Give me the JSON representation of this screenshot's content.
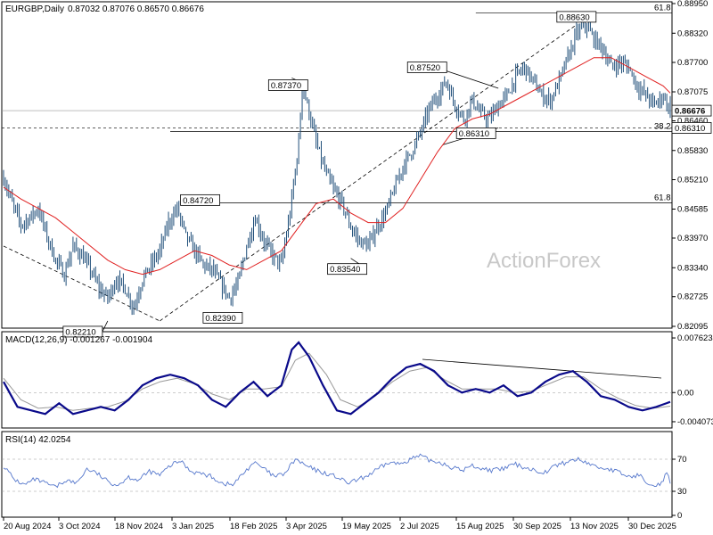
{
  "colors": {
    "price": "#1f4e79",
    "ma": "#e02020",
    "macd": "#0a0a8a",
    "signal": "#999999",
    "rsi": "#5577cc",
    "grid": "#cccccc",
    "watermark": "#c8c8c8"
  },
  "header": {
    "instrument": "EURGBP,Daily",
    "ohlc": "0.87032 0.87076 0.86570 0.86676",
    "watermark": "ActionForex"
  },
  "chart_data": [
    {
      "type": "candlestick",
      "name_label": "EURGBP,Daily",
      "ylim": [
        0.82095,
        0.8895
      ],
      "y_ticks": [
        "0.88950",
        "0.88320",
        "0.87700",
        "0.87075",
        "0.86460",
        "0.85830",
        "0.85210",
        "0.84585",
        "0.83970",
        "0.83340",
        "0.82725",
        "0.82095"
      ],
      "y_tick_values": [
        0.8895,
        0.8832,
        0.877,
        0.87075,
        0.8646,
        0.8583,
        0.8521,
        0.84585,
        0.8397,
        0.8334,
        0.82725,
        0.82095
      ],
      "current_price": "0.86676",
      "current_price_value": 0.86676,
      "level_tag": "0.86310",
      "level_tag_value": 0.8631,
      "x_labels": [
        "20 Aug 2024",
        "3 Oct 2024",
        "18 Nov 2024",
        "3 Jan 2025",
        "18 Feb 2025",
        "3 Apr 2025",
        "19 May 2025",
        "2 Jul 2025",
        "15 Aug 2025",
        "30 Sep 2025",
        "13 Nov 2025",
        "30 Dec 2025"
      ],
      "fib_levels": [
        {
          "label": "61.8",
          "value": 0.8875
        },
        {
          "label": "38.2",
          "value": 0.8623
        },
        {
          "label": "61.8",
          "value": 0.8472
        }
      ],
      "annotations": [
        {
          "text": "0.82210",
          "value": 0.8221
        },
        {
          "text": "0.82390",
          "value": 0.8239
        },
        {
          "text": "0.84720",
          "value": 0.8472
        },
        {
          "text": "0.87370",
          "value": 0.8737
        },
        {
          "text": "0.83540",
          "value": 0.8354
        },
        {
          "text": "0.87520",
          "value": 0.8752
        },
        {
          "text": "0.86310",
          "value": 0.8631
        },
        {
          "text": "0.88630",
          "value": 0.8863
        }
      ],
      "close_points": [
        [
          0,
          0.8525
        ],
        [
          5,
          0.847
        ],
        [
          10,
          0.8425
        ],
        [
          15,
          0.844
        ],
        [
          20,
          0.846
        ],
        [
          25,
          0.84
        ],
        [
          30,
          0.835
        ],
        [
          35,
          0.832
        ],
        [
          40,
          0.838
        ],
        [
          45,
          0.836
        ],
        [
          50,
          0.833
        ],
        [
          55,
          0.829
        ],
        [
          60,
          0.827
        ],
        [
          65,
          0.831
        ],
        [
          70,
          0.829
        ],
        [
          75,
          0.825
        ],
        [
          80,
          0.831
        ],
        [
          85,
          0.834
        ],
        [
          90,
          0.837
        ],
        [
          95,
          0.843
        ],
        [
          100,
          0.846
        ],
        [
          105,
          0.84
        ],
        [
          110,
          0.837
        ],
        [
          115,
          0.834
        ],
        [
          120,
          0.833
        ],
        [
          125,
          0.83
        ],
        [
          130,
          0.827
        ],
        [
          135,
          0.83
        ],
        [
          140,
          0.838
        ],
        [
          145,
          0.844
        ],
        [
          150,
          0.839
        ],
        [
          155,
          0.836
        ],
        [
          160,
          0.834
        ],
        [
          165,
          0.845
        ],
        [
          170,
          0.86
        ],
        [
          172,
          0.872
        ],
        [
          175,
          0.868
        ],
        [
          180,
          0.86
        ],
        [
          185,
          0.854
        ],
        [
          190,
          0.85
        ],
        [
          195,
          0.847
        ],
        [
          200,
          0.842
        ],
        [
          205,
          0.839
        ],
        [
          210,
          0.838
        ],
        [
          215,
          0.842
        ],
        [
          220,
          0.845
        ],
        [
          225,
          0.85
        ],
        [
          230,
          0.855
        ],
        [
          235,
          0.858
        ],
        [
          240,
          0.862
        ],
        [
          245,
          0.867
        ],
        [
          250,
          0.87
        ],
        [
          255,
          0.873
        ],
        [
          260,
          0.868
        ],
        [
          265,
          0.865
        ],
        [
          270,
          0.869
        ],
        [
          275,
          0.866
        ],
        [
          280,
          0.865
        ],
        [
          285,
          0.868
        ],
        [
          290,
          0.87
        ],
        [
          295,
          0.874
        ],
        [
          300,
          0.876
        ],
        [
          305,
          0.873
        ],
        [
          310,
          0.87
        ],
        [
          315,
          0.869
        ],
        [
          320,
          0.873
        ],
        [
          325,
          0.878
        ],
        [
          330,
          0.883
        ],
        [
          335,
          0.885
        ],
        [
          340,
          0.882
        ],
        [
          345,
          0.88
        ],
        [
          350,
          0.876
        ],
        [
          355,
          0.877
        ],
        [
          360,
          0.876
        ],
        [
          365,
          0.872
        ],
        [
          370,
          0.87
        ],
        [
          375,
          0.868
        ],
        [
          380,
          0.87
        ],
        [
          384,
          0.8668
        ]
      ],
      "ma_points": [
        [
          0,
          0.8505
        ],
        [
          10,
          0.848
        ],
        [
          20,
          0.846
        ],
        [
          30,
          0.844
        ],
        [
          40,
          0.841
        ],
        [
          50,
          0.838
        ],
        [
          60,
          0.835
        ],
        [
          70,
          0.833
        ],
        [
          80,
          0.832
        ],
        [
          90,
          0.833
        ],
        [
          100,
          0.835
        ],
        [
          110,
          0.837
        ],
        [
          120,
          0.836
        ],
        [
          130,
          0.834
        ],
        [
          140,
          0.833
        ],
        [
          150,
          0.835
        ],
        [
          160,
          0.837
        ],
        [
          170,
          0.842
        ],
        [
          180,
          0.847
        ],
        [
          190,
          0.848
        ],
        [
          200,
          0.845
        ],
        [
          210,
          0.843
        ],
        [
          220,
          0.843
        ],
        [
          230,
          0.846
        ],
        [
          240,
          0.852
        ],
        [
          250,
          0.858
        ],
        [
          260,
          0.863
        ],
        [
          270,
          0.865
        ],
        [
          280,
          0.866
        ],
        [
          290,
          0.868
        ],
        [
          300,
          0.87
        ],
        [
          310,
          0.872
        ],
        [
          320,
          0.874
        ],
        [
          330,
          0.876
        ],
        [
          340,
          0.878
        ],
        [
          350,
          0.878
        ],
        [
          360,
          0.876
        ],
        [
          370,
          0.874
        ],
        [
          380,
          0.872
        ],
        [
          384,
          0.8705
        ]
      ]
    },
    {
      "type": "line",
      "name_label": "MACD(12,26,9) -0.001267 -0.001904",
      "ylim": [
        -0.0047,
        0.008
      ],
      "y_ticks": [
        "0.007623",
        "0.00",
        "-0.004073"
      ],
      "y_tick_values": [
        0.007623,
        0.0,
        -0.004073
      ],
      "macd_points": [
        [
          0,
          0.0015
        ],
        [
          8,
          -0.002
        ],
        [
          16,
          -0.0025
        ],
        [
          24,
          -0.003
        ],
        [
          32,
          -0.0015
        ],
        [
          40,
          -0.003
        ],
        [
          48,
          -0.0025
        ],
        [
          56,
          -0.002
        ],
        [
          64,
          -0.0025
        ],
        [
          72,
          -0.001
        ],
        [
          80,
          0.001
        ],
        [
          88,
          0.002
        ],
        [
          96,
          0.0025
        ],
        [
          104,
          0.002
        ],
        [
          112,
          0.001
        ],
        [
          120,
          -0.001
        ],
        [
          128,
          -0.002
        ],
        [
          136,
          0.0
        ],
        [
          144,
          0.0015
        ],
        [
          152,
          -0.0005
        ],
        [
          160,
          0.001
        ],
        [
          166,
          0.006
        ],
        [
          170,
          0.007
        ],
        [
          176,
          0.005
        ],
        [
          184,
          0.001
        ],
        [
          192,
          -0.0025
        ],
        [
          200,
          -0.003
        ],
        [
          208,
          -0.0015
        ],
        [
          216,
          0.0
        ],
        [
          224,
          0.002
        ],
        [
          232,
          0.0035
        ],
        [
          240,
          0.004
        ],
        [
          248,
          0.003
        ],
        [
          256,
          0.001
        ],
        [
          264,
          0.0
        ],
        [
          272,
          0.0005
        ],
        [
          280,
          0.0
        ],
        [
          288,
          0.001
        ],
        [
          296,
          -0.0005
        ],
        [
          304,
          0.0
        ],
        [
          312,
          0.0015
        ],
        [
          320,
          0.0025
        ],
        [
          328,
          0.003
        ],
        [
          336,
          0.0015
        ],
        [
          344,
          -0.0005
        ],
        [
          352,
          -0.001
        ],
        [
          360,
          -0.002
        ],
        [
          368,
          -0.0025
        ],
        [
          376,
          -0.002
        ],
        [
          384,
          -0.0013
        ]
      ],
      "signal_points": [
        [
          0,
          0.002
        ],
        [
          10,
          -0.001
        ],
        [
          20,
          -0.0022
        ],
        [
          30,
          -0.002
        ],
        [
          40,
          -0.0025
        ],
        [
          50,
          -0.0022
        ],
        [
          60,
          -0.002
        ],
        [
          70,
          -0.0012
        ],
        [
          80,
          0.0005
        ],
        [
          90,
          0.0015
        ],
        [
          100,
          0.002
        ],
        [
          110,
          0.0012
        ],
        [
          120,
          -0.0002
        ],
        [
          130,
          -0.001
        ],
        [
          140,
          0.0005
        ],
        [
          150,
          0.0005
        ],
        [
          160,
          0.0008
        ],
        [
          168,
          0.0045
        ],
        [
          176,
          0.0055
        ],
        [
          186,
          0.0025
        ],
        [
          194,
          -0.001
        ],
        [
          204,
          -0.002
        ],
        [
          214,
          -0.0005
        ],
        [
          224,
          0.0015
        ],
        [
          234,
          0.003
        ],
        [
          244,
          0.0035
        ],
        [
          254,
          0.0018
        ],
        [
          264,
          0.0005
        ],
        [
          274,
          0.0005
        ],
        [
          284,
          0.0005
        ],
        [
          294,
          0.0
        ],
        [
          304,
          0.0002
        ],
        [
          314,
          0.0012
        ],
        [
          324,
          0.0022
        ],
        [
          334,
          0.0022
        ],
        [
          344,
          0.0005
        ],
        [
          354,
          -0.0008
        ],
        [
          364,
          -0.0018
        ],
        [
          374,
          -0.0022
        ],
        [
          384,
          -0.0019
        ]
      ]
    },
    {
      "type": "line",
      "name_label": "RSI(14) 42.0254",
      "ylim": [
        0,
        100
      ],
      "y_ticks": [
        "70",
        "30",
        "0"
      ],
      "y_tick_values": [
        70,
        30,
        0
      ],
      "rsi_points": [
        [
          0,
          62
        ],
        [
          6,
          45
        ],
        [
          12,
          38
        ],
        [
          18,
          45
        ],
        [
          24,
          40
        ],
        [
          30,
          35
        ],
        [
          36,
          44
        ],
        [
          42,
          40
        ],
        [
          48,
          58
        ],
        [
          54,
          52
        ],
        [
          60,
          42
        ],
        [
          66,
          38
        ],
        [
          72,
          48
        ],
        [
          78,
          44
        ],
        [
          84,
          55
        ],
        [
          90,
          50
        ],
        [
          96,
          62
        ],
        [
          102,
          68
        ],
        [
          108,
          55
        ],
        [
          114,
          52
        ],
        [
          120,
          48
        ],
        [
          126,
          40
        ],
        [
          132,
          38
        ],
        [
          138,
          52
        ],
        [
          144,
          66
        ],
        [
          150,
          58
        ],
        [
          156,
          48
        ],
        [
          162,
          52
        ],
        [
          168,
          70
        ],
        [
          174,
          62
        ],
        [
          180,
          56
        ],
        [
          186,
          52
        ],
        [
          192,
          48
        ],
        [
          198,
          40
        ],
        [
          204,
          44
        ],
        [
          210,
          50
        ],
        [
          216,
          58
        ],
        [
          222,
          66
        ],
        [
          228,
          64
        ],
        [
          234,
          70
        ],
        [
          240,
          74
        ],
        [
          246,
          68
        ],
        [
          252,
          66
        ],
        [
          258,
          60
        ],
        [
          264,
          56
        ],
        [
          270,
          62
        ],
        [
          276,
          58
        ],
        [
          282,
          56
        ],
        [
          288,
          58
        ],
        [
          294,
          64
        ],
        [
          300,
          60
        ],
        [
          306,
          56
        ],
        [
          312,
          54
        ],
        [
          318,
          62
        ],
        [
          324,
          66
        ],
        [
          330,
          70
        ],
        [
          336,
          66
        ],
        [
          342,
          60
        ],
        [
          348,
          58
        ],
        [
          354,
          54
        ],
        [
          360,
          48
        ],
        [
          366,
          50
        ],
        [
          372,
          40
        ],
        [
          378,
          38
        ],
        [
          382,
          52
        ],
        [
          384,
          42
        ]
      ]
    }
  ]
}
